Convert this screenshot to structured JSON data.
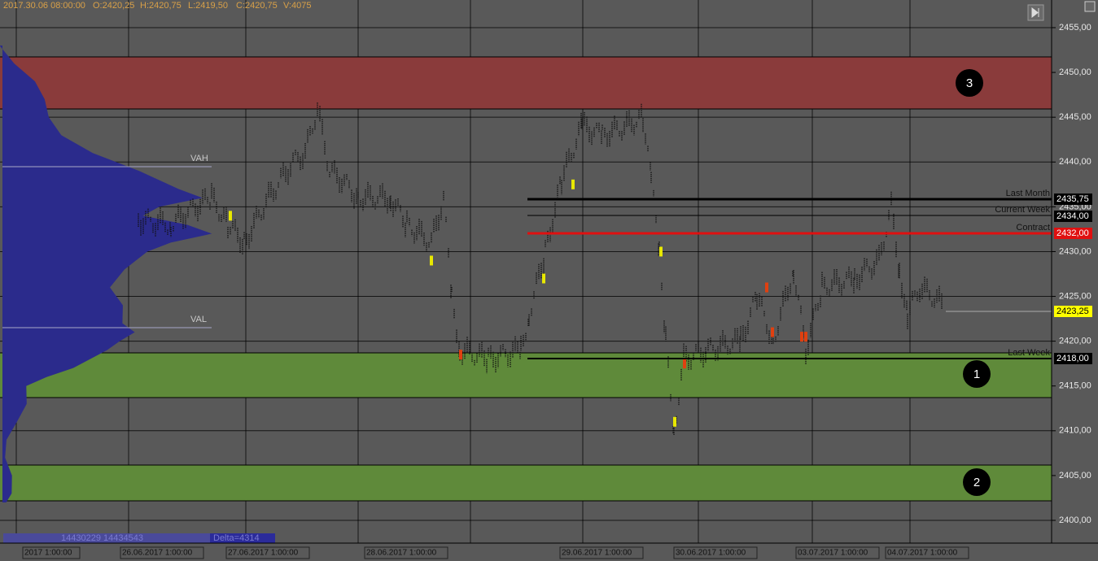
{
  "header": {
    "time": "2017.30.06 08:00:00",
    "open": "O:2420,25",
    "high": "H:2420,75",
    "low": "L:2419,50",
    "close": "C:2420,75",
    "volume": "V:4075"
  },
  "price_axis": [
    "2455,00",
    "2450,00",
    "2445,00",
    "2440,00",
    "2435,00",
    "2430,00",
    "2425,00",
    "2420,00",
    "2415,00",
    "2410,00",
    "2405,00",
    "2400,00"
  ],
  "levels": [
    {
      "name": "Last Month",
      "tag": "2435,75"
    },
    {
      "name": "Current Week",
      "tag": "2434,00"
    },
    {
      "name": "Contract",
      "tag": "2432,00"
    },
    {
      "name": "Last Week",
      "tag": "2418,00"
    }
  ],
  "current_price": "2423,25",
  "profile": {
    "vah": "VAH",
    "val": "VAL",
    "volume": "14430229 14434543",
    "delta": "Delta=4314"
  },
  "zones": [
    "3",
    "1",
    "2"
  ],
  "time_axis": [
    "2017 1:00:00",
    "26.06.2017 1:00:00",
    "27.06.2017 1:00:00",
    "28.06.2017 1:00:00",
    "29.06.2017 1:00:00",
    "30.06.2017 1:00:00",
    "03.07.2017 1:00:00",
    "04.07.2017 1:00:00"
  ]
}
